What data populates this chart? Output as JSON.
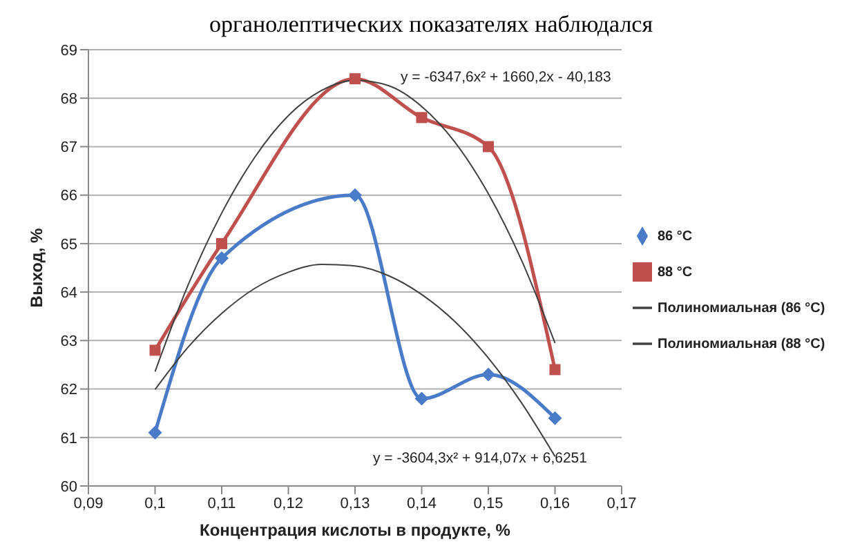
{
  "chart_data": {
    "type": "line",
    "xlabel": "Концентрация кислоты в продукте, %",
    "ylabel": "Выход, %",
    "annotations": [
      "органолептических показателях наблюдался",
      "y = -6347,6x² + 1660,2x - 40,183",
      "y = -3604,3x² + 914,07x + 6,6251"
    ],
    "series": [
      {
        "name": "86 °C",
        "color": "#4a7bc8",
        "marker": "diamond",
        "x": [
          0.1,
          0.11,
          0.13,
          0.14,
          0.15,
          0.16
        ],
        "values": [
          61.1,
          64.7,
          66.0,
          61.8,
          62.3,
          61.4
        ]
      },
      {
        "name": "88 °C",
        "color": "#c0504d",
        "marker": "square",
        "x": [
          0.1,
          0.11,
          0.13,
          0.14,
          0.15,
          0.16
        ],
        "values": [
          62.8,
          65.0,
          68.4,
          67.6,
          67.0,
          62.4
        ]
      },
      {
        "name": "Полиномиальная (86 °C)",
        "color": "#404040",
        "marker": "none",
        "x": [
          0.1,
          0.105,
          0.11,
          0.115,
          0.12,
          0.125,
          0.13,
          0.135,
          0.14,
          0.145,
          0.15,
          0.155,
          0.16
        ],
        "values": [
          61.99,
          62.87,
          63.56,
          64.08,
          64.41,
          64.57,
          64.54,
          64.34,
          63.95,
          63.39,
          62.64,
          61.71,
          60.61
        ]
      },
      {
        "name": "Полиномиальная (88 °C)",
        "color": "#404040",
        "marker": "none",
        "x": [
          0.1,
          0.105,
          0.11,
          0.115,
          0.12,
          0.125,
          0.13,
          0.135,
          0.14,
          0.145,
          0.15,
          0.155,
          0.16
        ],
        "values": [
          62.36,
          64.16,
          65.63,
          66.79,
          67.64,
          68.16,
          68.37,
          68.26,
          67.83,
          67.09,
          66.03,
          64.65,
          62.95
        ]
      }
    ],
    "xlim": [
      0.09,
      0.17
    ],
    "xticks": [
      {
        "value": 0.09,
        "label": "0,09"
      },
      {
        "value": 0.1,
        "label": "0,1"
      },
      {
        "value": 0.11,
        "label": "0,11"
      },
      {
        "value": 0.12,
        "label": "0,12"
      },
      {
        "value": 0.13,
        "label": "0,13"
      },
      {
        "value": 0.14,
        "label": "0,14"
      },
      {
        "value": 0.15,
        "label": "0,15"
      },
      {
        "value": 0.16,
        "label": "0,16"
      },
      {
        "value": 0.17,
        "label": "0,17"
      }
    ],
    "ylim": [
      60,
      69
    ],
    "yticks": [
      60,
      61,
      62,
      63,
      64,
      65,
      66,
      67,
      68,
      69
    ],
    "grid": "y",
    "legend": "right"
  }
}
